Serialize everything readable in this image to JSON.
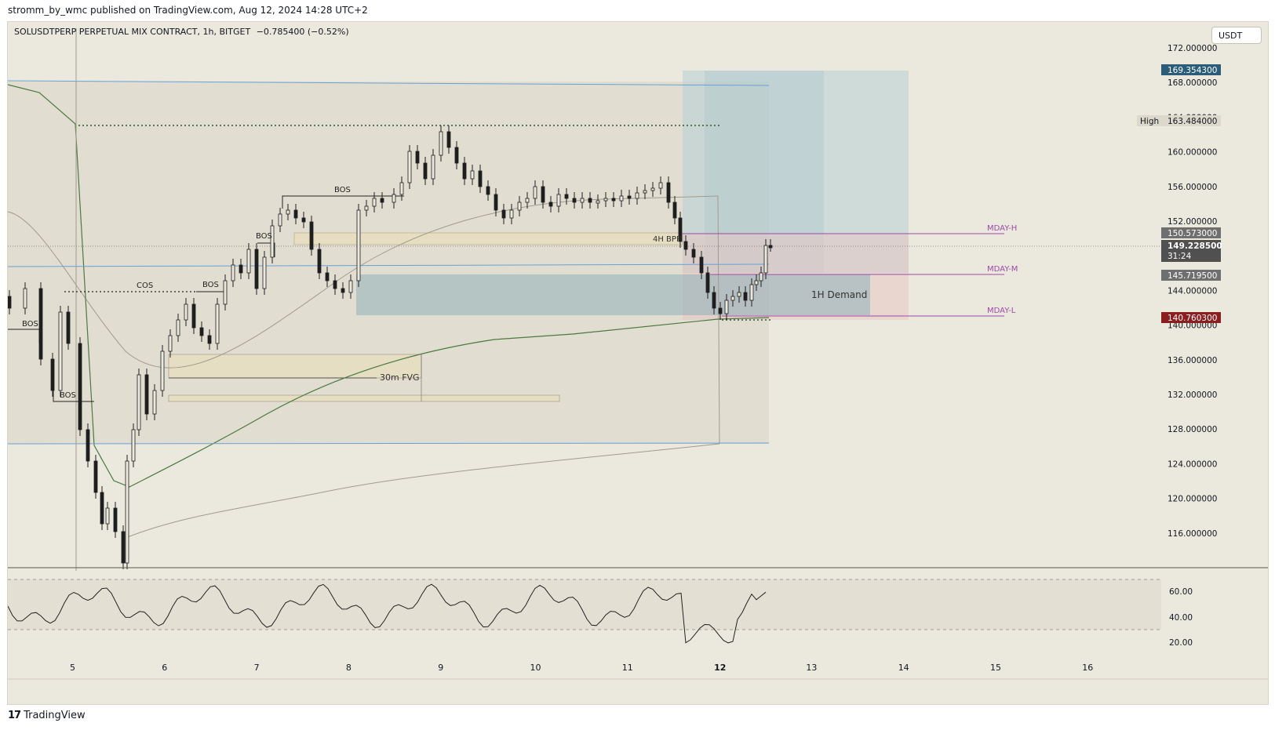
{
  "header": {
    "publisher_line": "stromm_by_wmc published on TradingView.com, Aug 12, 2024 14:28 UTC+2"
  },
  "chart_header": {
    "symbol": "SOLUSDTPERP PERPETUAL MIX CONTRACT, 1h, BITGET",
    "change": "−0.785400 (−0.52%)",
    "currency": "USDT"
  },
  "colors": {
    "background": "#ebe8dd",
    "candle": "#1e1e1e",
    "vwap": "#4a7a3f",
    "channel": "#6aa0d8",
    "mday": "#9c4aa8",
    "demand_zone": "#8fb0ba",
    "target_zone": "#b7cfd6",
    "stop_zone": "#e6c7c2",
    "fvg": "#e8dfc0",
    "last_price_label": "#505050",
    "top_label": "#2b5d7a",
    "low_label": "#8b1e1e"
  },
  "price_axis": {
    "ticks": [
      "172.000000",
      "168.000000",
      "164.000000",
      "160.000000",
      "156.000000",
      "152.000000",
      "148.000000",
      "144.000000",
      "140.000000",
      "136.000000",
      "132.000000",
      "128.000000",
      "124.000000",
      "120.000000",
      "116.000000"
    ],
    "labels": {
      "target": "169.354300",
      "high_tag": "High",
      "high": "163.484000",
      "mday_h": "150.573000",
      "last": "149.228500",
      "countdown": "31:24",
      "mday_m": "145.719500",
      "mday_l": "140.760300"
    }
  },
  "time_axis": {
    "ticks": [
      "5",
      "6",
      "7",
      "8",
      "9",
      "10",
      "11",
      "12",
      "13",
      "14",
      "15",
      "16"
    ]
  },
  "rsi_axis": {
    "ticks": [
      "60.00",
      "40.00",
      "20.00"
    ]
  },
  "annotations": {
    "bos": "BOS",
    "cos": "COS",
    "bpr": "4H BPR",
    "fvg": "30m FVG",
    "demand": "1H Demand",
    "mday_h": "MDAY-H",
    "mday_m": "MDAY-M",
    "mday_l": "MDAY-L"
  },
  "footer": {
    "brand": "TradingView"
  },
  "chart_data": {
    "type": "line",
    "note_free": true,
    "x": [
      "5",
      "6",
      "7",
      "8",
      "9",
      "10",
      "11",
      "12"
    ],
    "series": [
      {
        "name": "",
        "values": [
          140.5,
          132.0,
          146.5,
          144.0,
          161.0,
          153.5,
          155.5,
          149.2
        ]
      }
    ],
    "ylim": [
      112,
      174
    ]
  }
}
